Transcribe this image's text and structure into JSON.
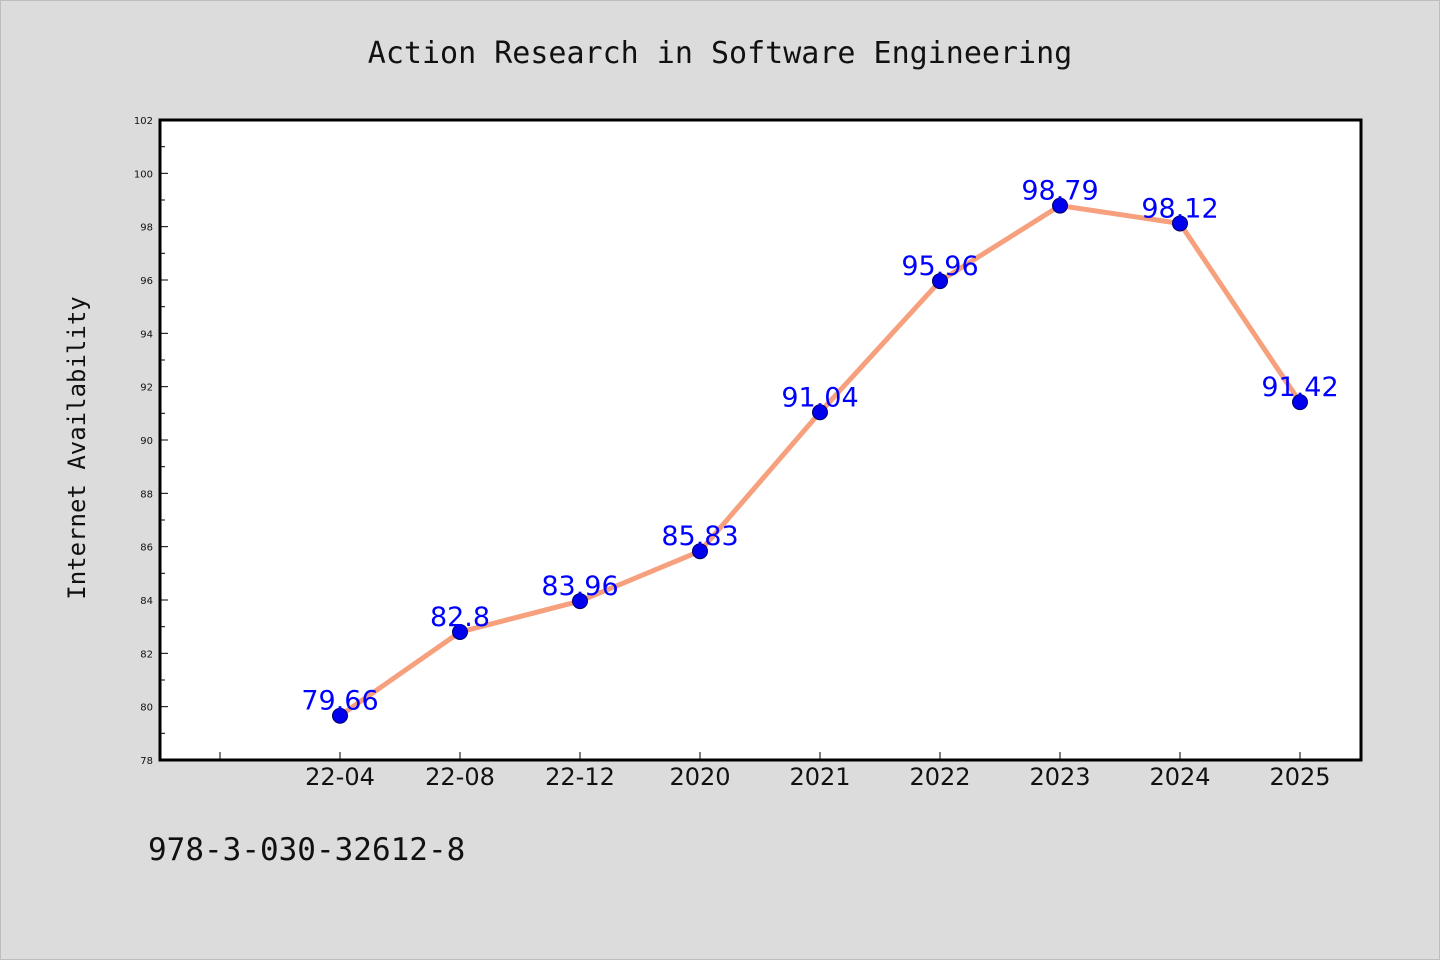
{
  "chart_data": {
    "type": "line",
    "title": "Action Research in Software Engineering",
    "xlabel": "",
    "ylabel": "Internet Availability",
    "categories": [
      "22-04",
      "22-08",
      "22-12",
      "2020",
      "2021",
      "2022",
      "2023",
      "2024",
      "2025"
    ],
    "series": [
      {
        "values": [
          79.66,
          82.8,
          83.96,
          85.83,
          91.04,
          95.96,
          98.79,
          98.12,
          91.42
        ]
      }
    ],
    "data_labels": [
      "79.66",
      "82.8",
      "83.96",
      "85.83",
      "91.04",
      "95.96",
      "98.79",
      "98.12",
      "91.42"
    ],
    "ylim": [
      78,
      102
    ],
    "yticks": [
      78,
      80,
      82,
      84,
      86,
      88,
      90,
      92,
      94,
      96,
      98,
      100,
      102
    ],
    "grid": false,
    "legend": "none",
    "colors": {
      "line": "#f7a07e",
      "marker_fill": "#0000ee",
      "marker_edge": "#000066",
      "data_label": "#0000ff",
      "plot_background": "#ffffff",
      "figure_background": "#dcdcdc"
    }
  },
  "footnote": "978-3-030-32612-8"
}
